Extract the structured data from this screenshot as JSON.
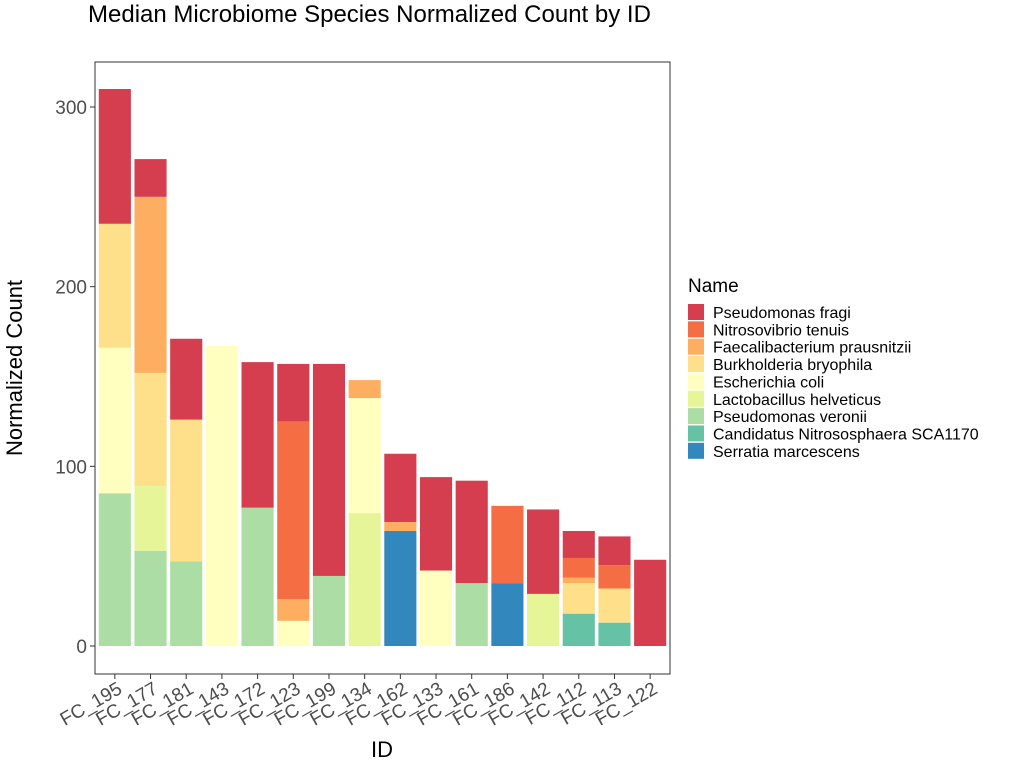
{
  "chart_data": {
    "type": "bar",
    "stacked": true,
    "title": "Median Microbiome Species Normalized Count by ID",
    "xlabel": "ID",
    "ylabel": "Normalized Count",
    "ylim": [
      0,
      325
    ],
    "yticks": [
      0,
      100,
      200,
      300
    ],
    "legend_title": "Name",
    "legend_position": "right",
    "categories": [
      "FC_195",
      "FC_177",
      "FC_181",
      "FC_143",
      "FC_172",
      "FC_123",
      "FC_199",
      "FC_134",
      "FC_162",
      "FC_133",
      "FC_161",
      "FC_186",
      "FC_142",
      "FC_112",
      "FC_113",
      "FC_122"
    ],
    "series": [
      {
        "name": "Pseudomonas veronii",
        "color": "#ABDDA4",
        "values": [
          85,
          53,
          47,
          0,
          77,
          0,
          39,
          0,
          0,
          0,
          35,
          0,
          0,
          0,
          0,
          0
        ]
      },
      {
        "name": "Candidatus Nitrososphaera SCA1170",
        "color": "#66C2A5",
        "values": [
          0,
          0,
          0,
          0,
          0,
          0,
          0,
          0,
          0,
          0,
          0,
          0,
          0,
          18,
          13,
          0
        ]
      },
      {
        "name": "Serratia marcescens",
        "color": "#3288BD",
        "values": [
          0,
          0,
          0,
          0,
          0,
          0,
          0,
          0,
          64,
          0,
          0,
          35,
          0,
          0,
          0,
          0
        ]
      },
      {
        "name": "Lactobacillus helveticus",
        "color": "#E6F598",
        "values": [
          0,
          36,
          0,
          0,
          0,
          0,
          0,
          74,
          0,
          0,
          0,
          0,
          29,
          0,
          0,
          0
        ]
      },
      {
        "name": "Escherichia coli",
        "color": "#FFFFBF",
        "values": [
          81,
          0,
          0,
          167,
          0,
          14,
          0,
          64,
          0,
          42,
          0,
          0,
          0,
          0,
          0,
          0
        ]
      },
      {
        "name": "Burkholderia bryophila",
        "color": "#FEE08B",
        "values": [
          69,
          63,
          79,
          0,
          0,
          0,
          0,
          0,
          0,
          0,
          0,
          0,
          0,
          17,
          19,
          0
        ]
      },
      {
        "name": "Faecalibacterium prausnitzii",
        "color": "#FDAE61",
        "values": [
          0,
          98,
          0,
          0,
          0,
          12,
          0,
          10,
          5,
          0,
          0,
          0,
          0,
          3,
          0,
          0
        ]
      },
      {
        "name": "Nitrosovibrio tenuis",
        "color": "#F46D43",
        "values": [
          0,
          0,
          0,
          0,
          0,
          99,
          0,
          0,
          0,
          0,
          0,
          43,
          0,
          11,
          13,
          0
        ]
      },
      {
        "name": "Pseudomonas fragi",
        "color": "#D53E4F",
        "values": [
          75,
          21,
          45,
          0,
          81,
          32,
          118,
          0,
          38,
          52,
          57,
          0,
          47,
          15,
          16,
          48
        ]
      }
    ],
    "legend_order": [
      "Pseudomonas fragi",
      "Nitrosovibrio tenuis",
      "Faecalibacterium prausnitzii",
      "Burkholderia bryophila",
      "Escherichia coli",
      "Lactobacillus helveticus",
      "Pseudomonas veronii",
      "Candidatus Nitrososphaera SCA1170",
      "Serratia marcescens"
    ]
  }
}
